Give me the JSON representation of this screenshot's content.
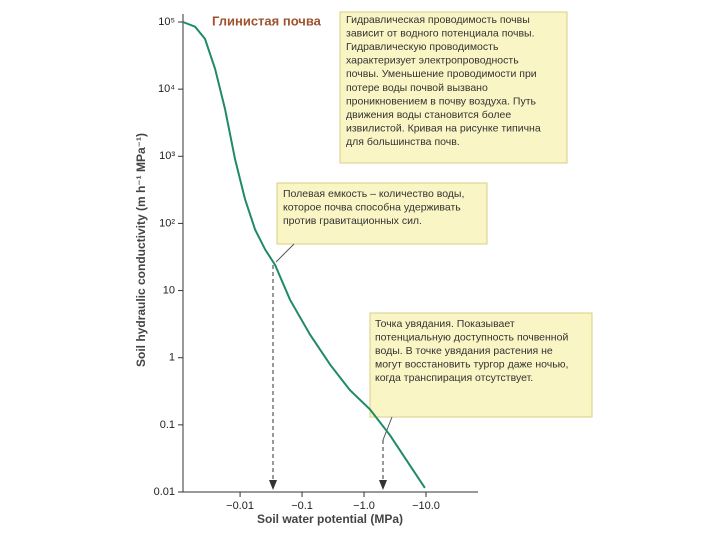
{
  "chart_data": {
    "type": "line",
    "title": "Глинистая почва",
    "xlabel": "Soil water potential (MPa)",
    "ylabel": "Soil hydraulic conductivity (m h⁻¹ MPa⁻¹)",
    "xscale": "log-magnitude",
    "yscale": "log",
    "xlim": [
      -0.0012,
      -69
    ],
    "ylim": [
      0.01,
      100000
    ],
    "xticks": [
      {
        "value": -0.01,
        "label": "−0.01"
      },
      {
        "value": -0.1,
        "label": "−0.1"
      },
      {
        "value": -1,
        "label": "−1.0"
      },
      {
        "value": -10,
        "label": "−10.0"
      }
    ],
    "yticks": [
      {
        "value": 0.01,
        "label": "0.01"
      },
      {
        "value": 0.1,
        "label": "0.1"
      },
      1,
      10,
      {
        "value": 100,
        "label": "10²"
      },
      {
        "value": 1000,
        "label": "10³"
      },
      {
        "value": 10000,
        "label": "10⁴"
      },
      {
        "value": 100000,
        "label": "10⁵"
      }
    ],
    "series": [
      {
        "name": "Глинистая почва",
        "color": "#1f8a6a",
        "x": [
          -0.0012,
          -0.00188,
          -0.00272,
          -0.00395,
          -0.00573,
          -0.0083,
          -0.012,
          -0.0175,
          -0.0253,
          -0.0367,
          -0.064,
          -0.135,
          -0.283,
          -0.59,
          -1.25,
          -2.6,
          -5.5,
          -9.6
        ],
        "values": [
          100000,
          85000,
          56000,
          20000,
          5000,
          900,
          230,
          81,
          41,
          24,
          7.3,
          2.2,
          0.79,
          0.33,
          0.17,
          0.071,
          0.025,
          0.0115
        ]
      }
    ],
    "annotations": [
      {
        "lines": [
          "Гидравлическая проводимость почвы",
          "зависит от водного потенциала почвы.",
          "Гидравлическую проводимость",
          "характеризует электропроводность",
          "почвы. Уменьшение проводимости при",
          "потере воды почвой вызвано",
          "проникновением в почву воздуха. Путь",
          "движения воды становится более",
          "извилистой. Кривая на рисунке типична",
          "для большинства почв."
        ]
      },
      {
        "lines": [
          "Полевая емкость – количество воды,",
          "которое почва способна удерживать",
          "против гравитационных сил."
        ]
      },
      {
        "lines": [
          "Точка увядания. Показывает",
          "потенциальную доступность почвенной",
          "воды. В точке увядания растения не",
          "могут восстановить тургор даже ночью,",
          "когда транспирация отсутствует."
        ]
      }
    ]
  }
}
